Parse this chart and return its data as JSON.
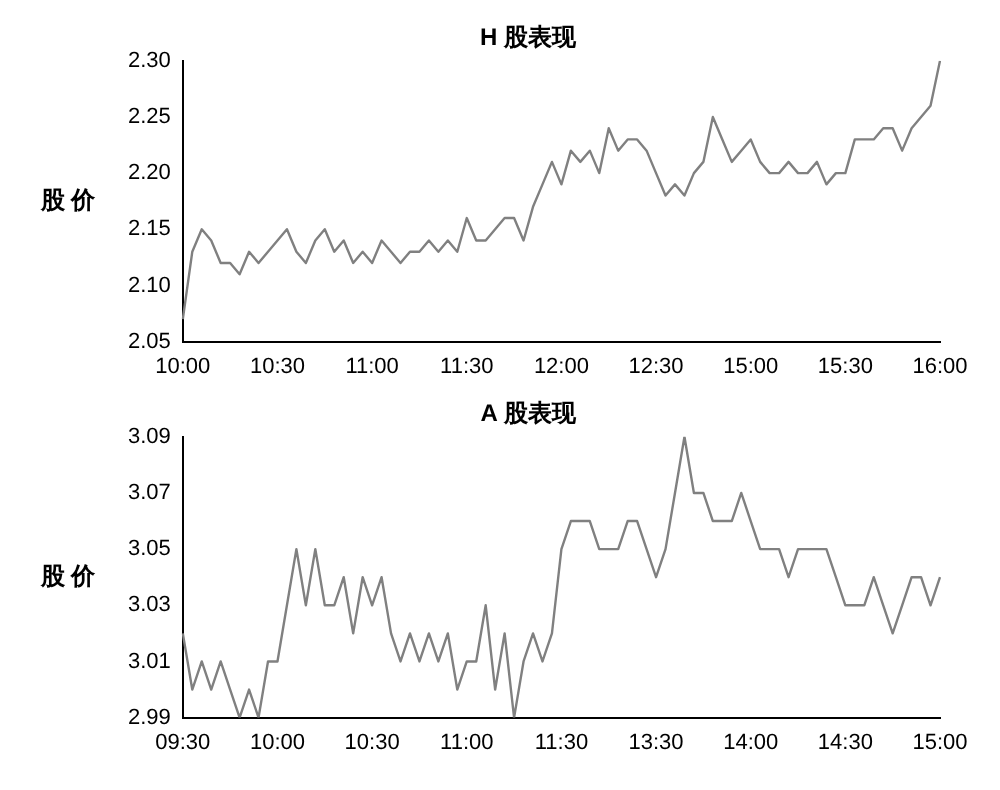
{
  "chart_data": [
    {
      "type": "line",
      "title": "H 股表现",
      "ylabel": "股 价",
      "categories": [
        "10:00",
        null,
        null,
        null,
        null,
        null,
        null,
        null,
        null,
        null,
        "10:30",
        null,
        null,
        null,
        null,
        null,
        null,
        null,
        null,
        null,
        "11:00",
        null,
        null,
        null,
        null,
        null,
        null,
        null,
        null,
        null,
        "11:30",
        null,
        null,
        null,
        null,
        null,
        null,
        null,
        null,
        null,
        "12:00",
        null,
        null,
        null,
        null,
        null,
        null,
        null,
        null,
        null,
        "12:30",
        null,
        null,
        null,
        null,
        null,
        null,
        null,
        null,
        null,
        "15:00",
        null,
        null,
        null,
        null,
        null,
        null,
        null,
        null,
        null,
        "15:30",
        null,
        null,
        null,
        null,
        null,
        null,
        null,
        null,
        null,
        "16:00"
      ],
      "series": [
        {
          "color": "#808080",
          "values": [
            2.07,
            2.13,
            2.15,
            2.14,
            2.12,
            2.12,
            2.11,
            2.13,
            2.12,
            2.13,
            2.14,
            2.15,
            2.13,
            2.12,
            2.14,
            2.15,
            2.13,
            2.14,
            2.12,
            2.13,
            2.12,
            2.14,
            2.13,
            2.12,
            2.13,
            2.13,
            2.14,
            2.13,
            2.14,
            2.13,
            2.16,
            2.14,
            2.14,
            2.15,
            2.16,
            2.16,
            2.14,
            2.17,
            2.19,
            2.21,
            2.19,
            2.22,
            2.21,
            2.22,
            2.2,
            2.24,
            2.22,
            2.23,
            2.23,
            2.22,
            2.2,
            2.18,
            2.19,
            2.18,
            2.2,
            2.21,
            2.25,
            2.23,
            2.21,
            2.22,
            2.23,
            2.21,
            2.2,
            2.2,
            2.21,
            2.2,
            2.2,
            2.21,
            2.19,
            2.2,
            2.2,
            2.23,
            2.23,
            2.23,
            2.24,
            2.24,
            2.22,
            2.24,
            2.25,
            2.26,
            2.3
          ]
        }
      ],
      "ylim": [
        2.05,
        2.3
      ],
      "yticks": [
        2.05,
        {
          "value": 2.1,
          "label": "2.10"
        },
        2.15,
        {
          "value": 2.2,
          "label": "2.20"
        },
        2.25,
        {
          "value": 2.3,
          "label": "2.30"
        }
      ],
      "grid": false,
      "legend": false,
      "marker": "none",
      "line_style": "solid"
    },
    {
      "type": "line",
      "title": "A 股表现",
      "ylabel": "股 价",
      "categories": [
        "09:30",
        null,
        null,
        null,
        null,
        null,
        null,
        null,
        null,
        null,
        "10:00",
        null,
        null,
        null,
        null,
        null,
        null,
        null,
        null,
        null,
        "10:30",
        null,
        null,
        null,
        null,
        null,
        null,
        null,
        null,
        null,
        "11:00",
        null,
        null,
        null,
        null,
        null,
        null,
        null,
        null,
        null,
        "11:30",
        null,
        null,
        null,
        null,
        null,
        null,
        null,
        null,
        null,
        "13:30",
        null,
        null,
        null,
        null,
        null,
        null,
        null,
        null,
        null,
        "14:00",
        null,
        null,
        null,
        null,
        null,
        null,
        null,
        null,
        null,
        "14:30",
        null,
        null,
        null,
        null,
        null,
        null,
        null,
        null,
        null,
        "15:00"
      ],
      "series": [
        {
          "color": "#808080",
          "values": [
            3.02,
            3.0,
            3.01,
            3.0,
            3.01,
            3.0,
            2.99,
            3.0,
            2.99,
            3.01,
            3.01,
            3.03,
            3.05,
            3.03,
            3.05,
            3.03,
            3.03,
            3.04,
            3.02,
            3.04,
            3.03,
            3.04,
            3.02,
            3.01,
            3.02,
            3.01,
            3.02,
            3.01,
            3.02,
            3.0,
            3.01,
            3.01,
            3.03,
            3.0,
            3.02,
            2.99,
            3.01,
            3.02,
            3.01,
            3.02,
            3.05,
            3.06,
            3.06,
            3.06,
            3.05,
            3.05,
            3.05,
            3.06,
            3.06,
            3.05,
            3.04,
            3.05,
            3.07,
            3.09,
            3.07,
            3.07,
            3.06,
            3.06,
            3.06,
            3.07,
            3.06,
            3.05,
            3.05,
            3.05,
            3.04,
            3.05,
            3.05,
            3.05,
            3.05,
            3.04,
            3.03,
            3.03,
            3.03,
            3.04,
            3.03,
            3.02,
            3.03,
            3.04,
            3.04,
            3.03,
            3.04
          ]
        }
      ],
      "ylim": [
        2.99,
        3.09
      ],
      "yticks": [
        2.99,
        3.01,
        3.03,
        3.05,
        3.07,
        3.09
      ],
      "grid": false,
      "legend": false,
      "marker": "none",
      "line_style": "solid"
    }
  ]
}
